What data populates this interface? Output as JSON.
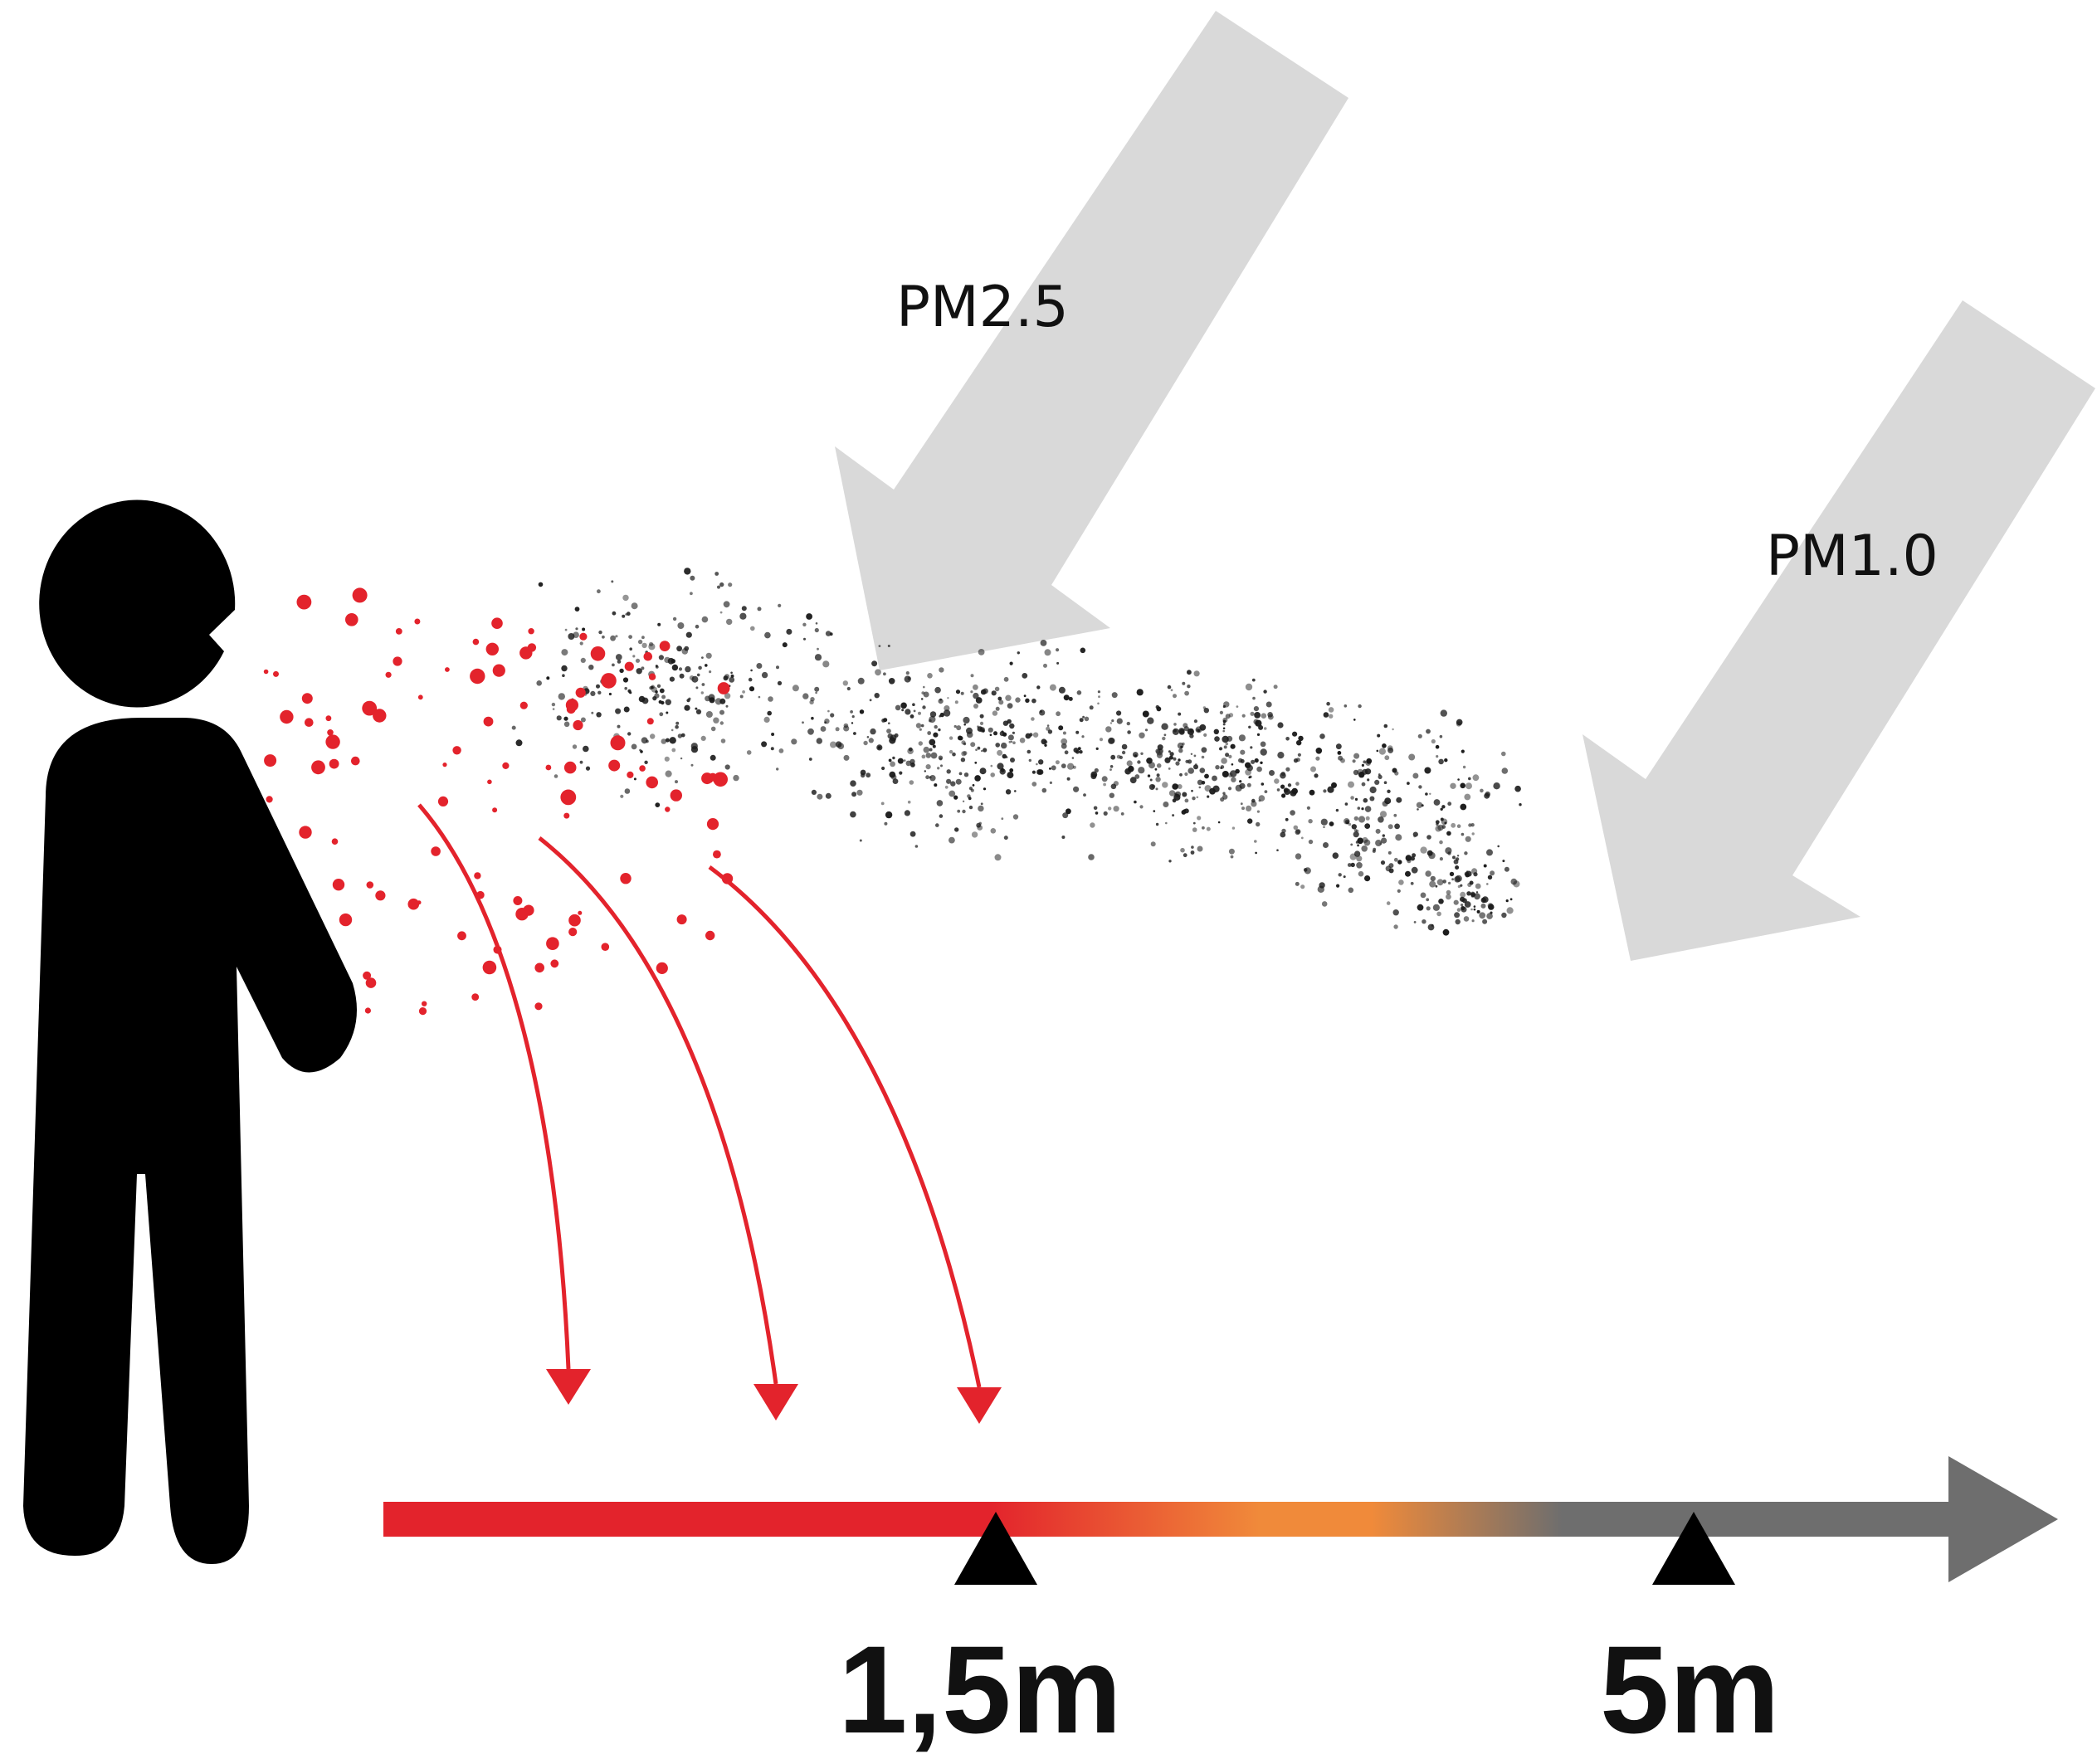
{
  "labels": {
    "pm25": "PM2.5",
    "pm10": "PM1.0",
    "distance_near": "1,5m",
    "distance_far": "5m"
  },
  "icons": {
    "person": "person-speaking-icon",
    "large_arrow": "gray-down-left-arrow-icon",
    "droplet_arrow": "red-curved-down-arrow-icon",
    "marker": "triangle-marker-icon"
  },
  "colors": {
    "person": "#000000",
    "large_droplets": "#e3232c",
    "aerosol": "#1a1a1a",
    "pm_arrows": "#d9d9d9",
    "axis_start": "#e3232c",
    "axis_mid": "#f08a3a",
    "axis_end": "#6e6e6e"
  }
}
